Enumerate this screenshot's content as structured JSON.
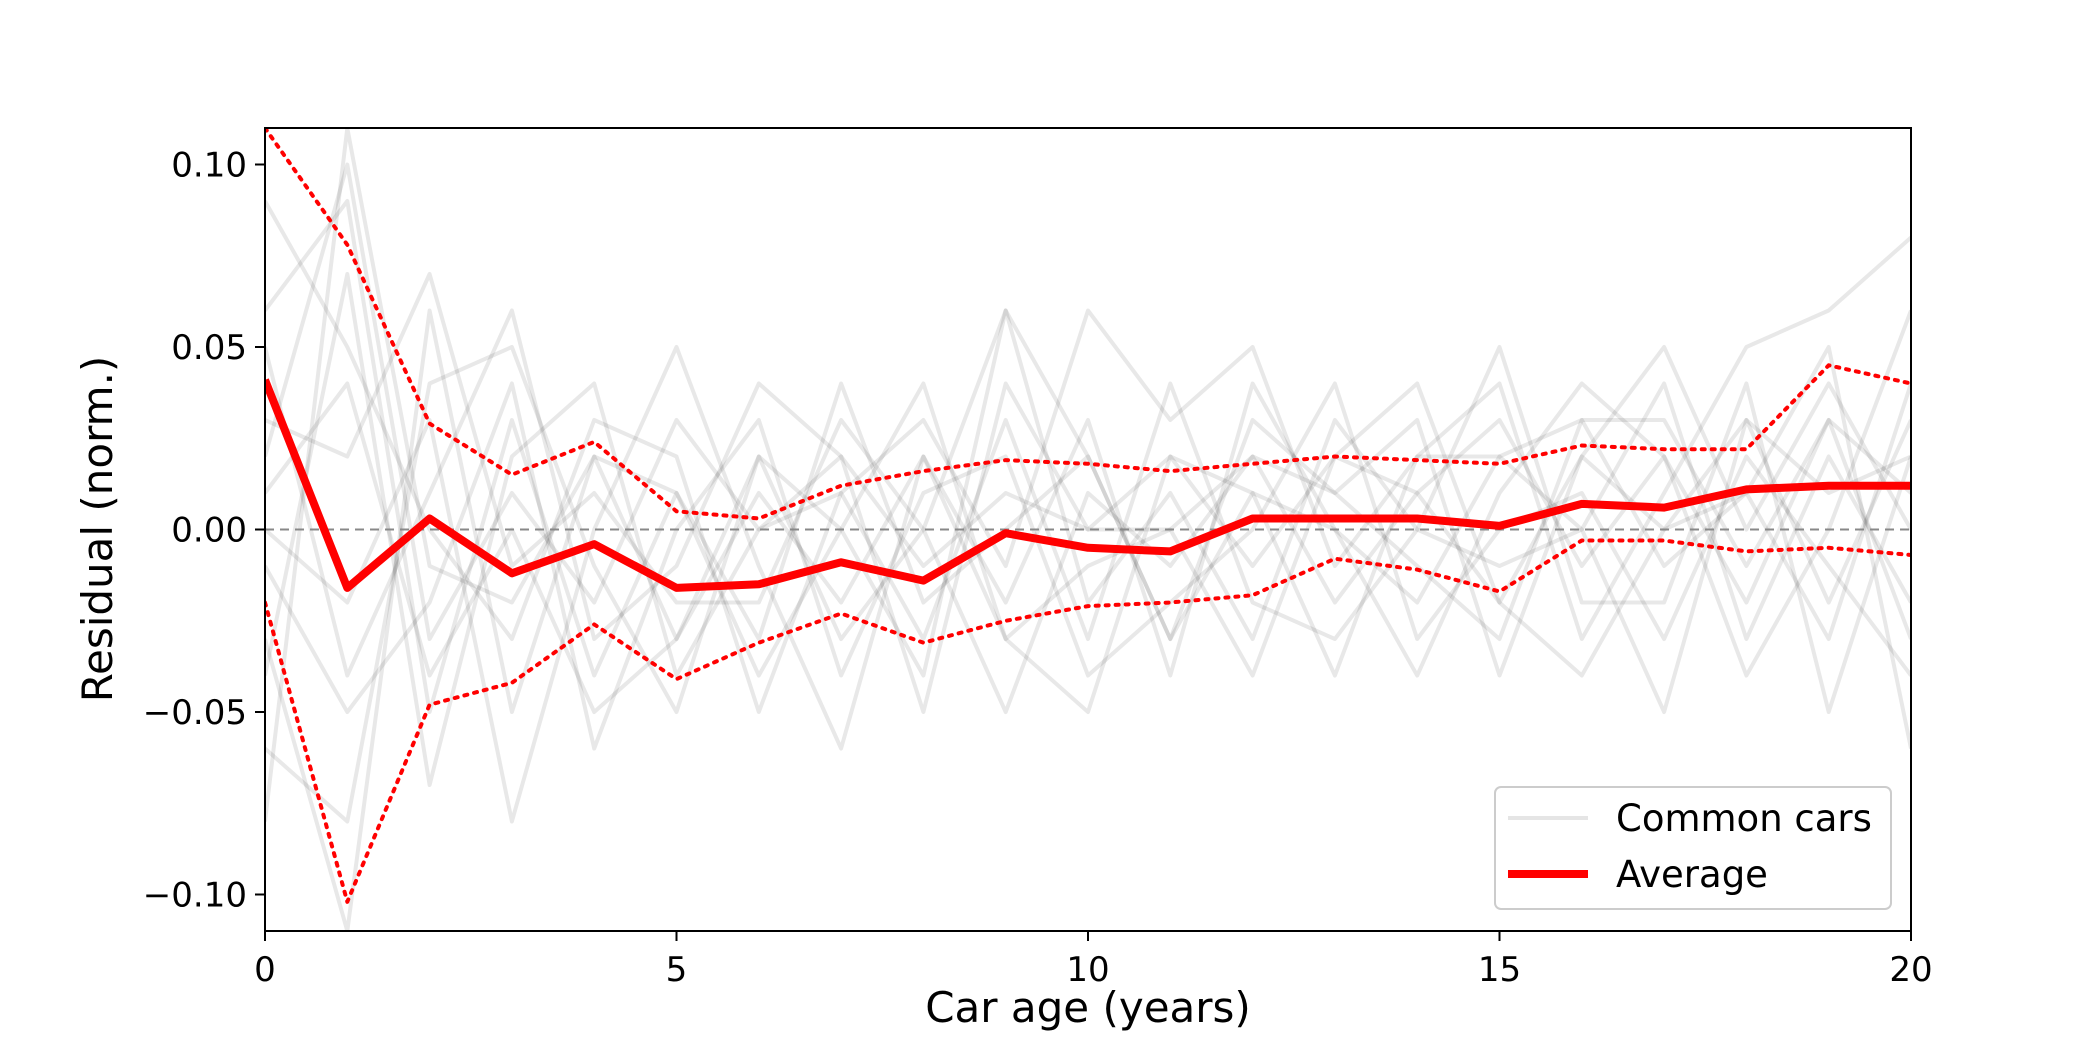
{
  "chart_data": {
    "type": "line",
    "xlabel": "Car age (years)",
    "ylabel": "Residual (norm.)",
    "xlim": [
      0,
      20
    ],
    "ylim": [
      -0.11,
      0.11
    ],
    "x_ticks": [
      0,
      5,
      10,
      15,
      20
    ],
    "x_tick_labels": [
      "0",
      "5",
      "10",
      "15",
      "20"
    ],
    "y_ticks": [
      -0.1,
      -0.05,
      0.0,
      0.05,
      0.1
    ],
    "y_tick_labels": [
      "−0.10",
      "−0.05",
      "0.00",
      "0.05",
      "0.10"
    ],
    "zero_line": true,
    "grid": false,
    "legend_position": "lower-right",
    "legend": [
      {
        "label": "Common cars",
        "color": "#bbbbbb"
      },
      {
        "label": "Average",
        "color": "#ff0000"
      }
    ],
    "x": [
      0,
      1,
      2,
      3,
      4,
      5,
      6,
      7,
      8,
      9,
      10,
      11,
      12,
      13,
      14,
      15,
      16,
      17,
      18,
      19,
      20
    ],
    "series": [
      {
        "name": "Average",
        "style": "solid",
        "color": "#ff0000",
        "values": [
          0.041,
          -0.016,
          0.003,
          -0.012,
          -0.004,
          -0.016,
          -0.015,
          -0.009,
          -0.014,
          -0.001,
          -0.005,
          -0.006,
          0.003,
          0.003,
          0.003,
          0.001,
          0.007,
          0.006,
          0.011,
          0.012,
          0.012
        ]
      },
      {
        "style": "dotted",
        "color": "#ff0000",
        "values": [
          0.11,
          0.078,
          0.029,
          0.015,
          0.024,
          0.005,
          0.003,
          0.012,
          0.016,
          0.019,
          0.018,
          0.016,
          0.018,
          0.02,
          0.019,
          0.018,
          0.023,
          0.022,
          0.022,
          0.045,
          0.04
        ]
      },
      {
        "style": "dotted",
        "color": "#ff0000",
        "values": [
          -0.02,
          -0.102,
          -0.048,
          -0.042,
          -0.026,
          -0.041,
          -0.031,
          -0.023,
          -0.031,
          -0.025,
          -0.021,
          -0.02,
          -0.018,
          -0.008,
          -0.011,
          -0.017,
          -0.003,
          -0.003,
          -0.006,
          -0.005,
          -0.007
        ]
      }
    ],
    "background_series": [
      [
        0.02,
        0.1,
        -0.03,
        0.01,
        -0.02,
        0.03,
        0.0,
        0.02,
        -0.01,
        0.01,
        0.0,
        0.02,
        -0.01,
        0.02,
        0.01,
        -0.02,
        0.02,
        0.0,
        0.03,
        0.01,
        0.02
      ],
      [
        -0.03,
        -0.11,
        0.06,
        -0.05,
        0.02,
        -0.03,
        0.01,
        -0.02,
        0.02,
        -0.03,
        -0.01,
        0.0,
        0.02,
        -0.02,
        0.01,
        0.03,
        -0.01,
        0.02,
        -0.02,
        0.03,
        0.01
      ],
      [
        0.06,
        0.09,
        -0.05,
        0.03,
        -0.04,
        0.01,
        -0.03,
        0.04,
        -0.02,
        0.0,
        0.02,
        -0.03,
        0.01,
        0.0,
        -0.02,
        0.02,
        0.03,
        -0.01,
        0.01,
        -0.03,
        0.04
      ],
      [
        -0.06,
        -0.08,
        0.04,
        0.05,
        -0.01,
        -0.05,
        0.02,
        0.0,
        -0.04,
        0.06,
        -0.02,
        0.01,
        -0.03,
        0.03,
        0.0,
        -0.01,
        0.0,
        0.04,
        -0.03,
        0.02,
        -0.02
      ],
      [
        0.09,
        0.05,
        0.0,
        -0.03,
        0.03,
        0.02,
        -0.05,
        0.01,
        0.03,
        -0.01,
        0.06,
        0.03,
        0.05,
        -0.01,
        0.02,
        0.04,
        -0.03,
        0.01,
        0.05,
        0.06,
        0.08
      ],
      [
        -0.01,
        -0.05,
        -0.02,
        0.04,
        -0.06,
        0.0,
        0.03,
        -0.04,
        0.01,
        0.02,
        -0.04,
        -0.02,
        0.0,
        0.04,
        -0.03,
        0.0,
        0.01,
        -0.03,
        0.02,
        -0.01,
        -0.04
      ],
      [
        0.03,
        0.02,
        0.07,
        -0.01,
        0.01,
        -0.02,
        -0.02,
        0.03,
        0.0,
        -0.05,
        0.01,
        -0.01,
        0.02,
        0.01,
        0.03,
        -0.04,
        0.02,
        0.05,
        0.0,
        0.04,
        0.0
      ],
      [
        -0.04,
        0.07,
        -0.07,
        0.02,
        0.04,
        -0.04,
        0.0,
        0.01,
        -0.03,
        0.03,
        -0.03,
        0.04,
        -0.02,
        -0.03,
        0.0,
        0.05,
        -0.02,
        -0.02,
        0.04,
        -0.05,
        0.02
      ],
      [
        0.0,
        -0.02,
        0.03,
        -0.08,
        0.0,
        0.05,
        -0.01,
        -0.06,
        0.02,
        -0.02,
        0.03,
        -0.04,
        0.04,
        0.0,
        -0.04,
        0.01,
        0.04,
        0.02,
        -0.04,
        0.0,
        0.06
      ],
      [
        0.05,
        -0.04,
        0.01,
        0.06,
        -0.03,
        -0.01,
        0.04,
        0.02,
        -0.05,
        0.04,
        0.0,
        0.0,
        -0.04,
        0.02,
        0.04,
        -0.02,
        -0.04,
        0.0,
        0.01,
        0.05,
        -0.06
      ],
      [
        -0.08,
        0.11,
        -0.01,
        -0.02,
        0.02,
        0.01,
        -0.04,
        0.0,
        0.04,
        -0.03,
        -0.05,
        0.02,
        0.01,
        -0.04,
        0.02,
        0.02,
        0.0,
        -0.05,
        0.03,
        -0.02,
        0.03
      ],
      [
        0.01,
        0.04,
        -0.04,
        0.0,
        -0.05,
        -0.03,
        0.02,
        -0.03,
        0.0,
        0.06,
        0.02,
        -0.03,
        0.03,
        0.01,
        -0.01,
        -0.03,
        0.03,
        0.03,
        -0.01,
        0.03,
        -0.03
      ]
    ]
  }
}
